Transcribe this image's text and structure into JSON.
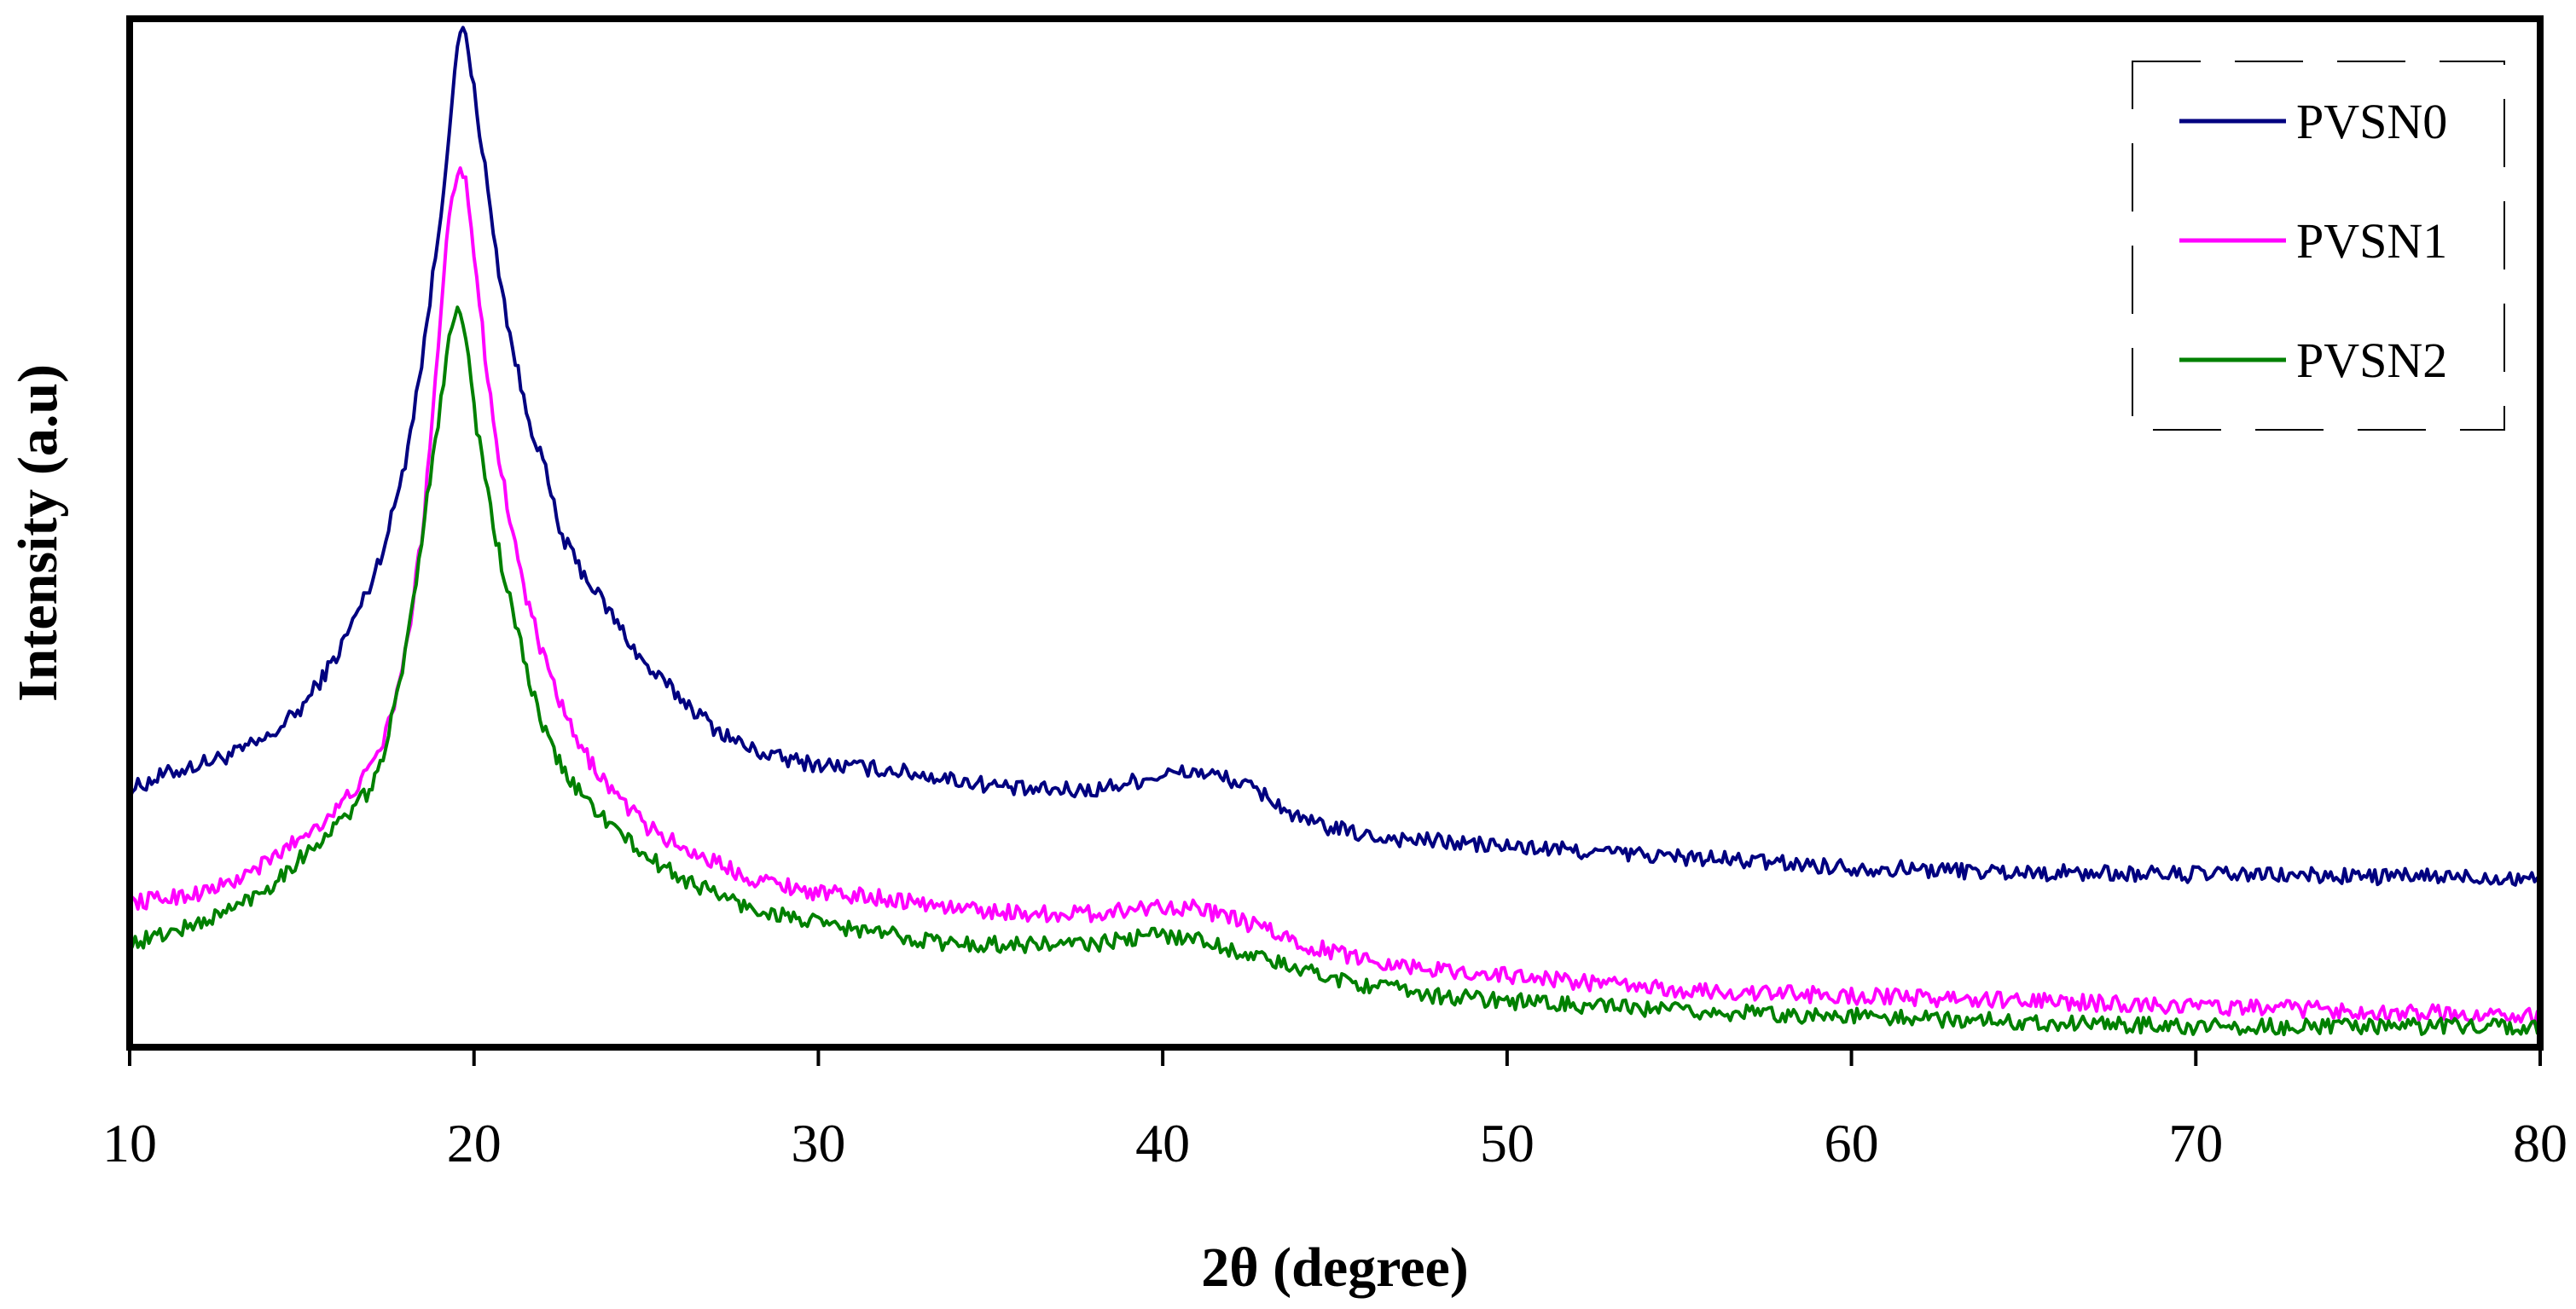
{
  "chart_data": {
    "type": "line",
    "title": "",
    "xlabel": "2θ (degree)",
    "ylabel": "Intensity (a.u)",
    "xlim": [
      10,
      80
    ],
    "ylim": [
      0,
      100
    ],
    "xticks": [
      10,
      20,
      30,
      40,
      50,
      60,
      70,
      80
    ],
    "grid": false,
    "legend": "top-right",
    "y_tick_labels_shown": false,
    "series": [
      {
        "name": "PVSN0",
        "color": "#000080",
        "x": [
          10,
          11,
          12,
          13,
          14,
          15,
          16,
          17,
          17.5,
          18,
          18.5,
          19,
          19.3,
          19.6,
          19.8,
          20,
          20.3,
          20.6,
          21,
          21.5,
          22,
          22.5,
          23,
          24,
          25,
          26,
          27,
          28,
          29,
          30,
          32,
          34,
          36,
          38,
          40,
          41,
          42,
          43,
          44,
          46,
          48,
          50,
          55,
          60,
          65,
          70,
          75,
          80
        ],
        "y": [
          25.0,
          26.5,
          27.5,
          28.5,
          30.0,
          33.0,
          38.0,
          45.0,
          50.0,
          57.0,
          67.0,
          80.0,
          90.0,
          99.0,
          98.0,
          93.0,
          86.0,
          78.0,
          70.0,
          62.0,
          57.0,
          50.0,
          47.0,
          42.0,
          37.0,
          34.0,
          31.0,
          29.0,
          28.0,
          27.5,
          27.0,
          26.0,
          25.0,
          25.0,
          26.5,
          26.8,
          26.0,
          24.5,
          22.0,
          20.5,
          20.0,
          19.5,
          18.5,
          17.5,
          17.0,
          16.8,
          16.6,
          16.5
        ]
      },
      {
        "name": "PVSN1",
        "color": "#FF00FF",
        "x": [
          10,
          11,
          12,
          13,
          14,
          15,
          16,
          17,
          17.5,
          18,
          18.5,
          19,
          19.3,
          19.6,
          19.8,
          20,
          20.3,
          20.6,
          21,
          21.5,
          22,
          22.5,
          23,
          24,
          25,
          26,
          27,
          28,
          29,
          30,
          32,
          34,
          36,
          38,
          40,
          41,
          42,
          43,
          44,
          46,
          48,
          50,
          55,
          60,
          65,
          70,
          75,
          80
        ],
        "y": [
          14.0,
          14.5,
          15.0,
          16.0,
          18.0,
          20.5,
          23.0,
          27.0,
          31.0,
          38.0,
          50.0,
          70.0,
          82.0,
          86.0,
          84.0,
          77.0,
          68.0,
          60.0,
          52.0,
          44.0,
          38.0,
          33.5,
          29.5,
          25.0,
          21.5,
          19.5,
          18.0,
          16.5,
          15.8,
          15.0,
          14.5,
          13.5,
          13.0,
          13.0,
          13.8,
          13.5,
          12.5,
          11.5,
          10.0,
          8.5,
          7.5,
          7.0,
          5.5,
          5.0,
          4.5,
          4.0,
          3.5,
          3.0
        ]
      },
      {
        "name": "PVSN2",
        "color": "#008000",
        "x": [
          10,
          11,
          12,
          13,
          14,
          15,
          16,
          17,
          17.5,
          18,
          18.5,
          19,
          19.3,
          19.6,
          19.8,
          20,
          20.3,
          20.6,
          21,
          21.5,
          22,
          22.5,
          23,
          24,
          25,
          26,
          27,
          28,
          29,
          30,
          32,
          34,
          36,
          38,
          40,
          41,
          42,
          43,
          44,
          46,
          48,
          50,
          55,
          60,
          65,
          70,
          75,
          80
        ],
        "y": [
          10.0,
          11.0,
          12.0,
          13.5,
          15.5,
          18.5,
          21.5,
          25.0,
          30.0,
          38.0,
          50.0,
          62.0,
          70.0,
          72.0,
          68.0,
          62.0,
          56.0,
          50.0,
          44.0,
          37.0,
          31.0,
          27.5,
          25.0,
          21.5,
          18.5,
          16.5,
          15.0,
          13.5,
          12.8,
          12.0,
          11.0,
          10.0,
          10.0,
          10.0,
          11.0,
          10.5,
          9.5,
          8.5,
          7.5,
          6.0,
          5.0,
          4.5,
          3.5,
          3.0,
          2.5,
          2.0,
          2.0,
          2.0
        ]
      }
    ]
  }
}
